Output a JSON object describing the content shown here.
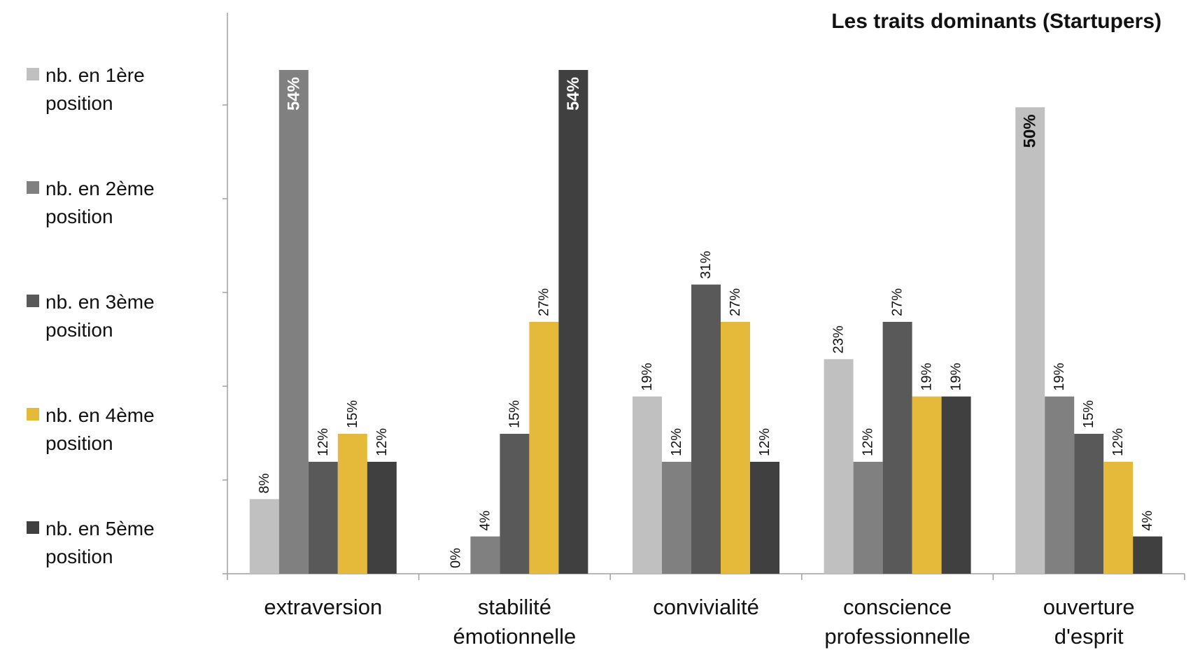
{
  "chart_data": {
    "type": "bar",
    "title": "Les traits dominants (Startupers)",
    "categories": [
      [
        "extraversion"
      ],
      [
        "stabilité",
        "émotionnelle"
      ],
      [
        "convivialité"
      ],
      [
        "conscience",
        "professionnelle"
      ],
      [
        "ouverture",
        "d'esprit"
      ]
    ],
    "series": [
      {
        "name": [
          "nb. en 1ère",
          "position"
        ],
        "color": "#c0c0c0",
        "values": [
          8,
          0,
          19,
          23,
          50
        ]
      },
      {
        "name": [
          "nb. en 2ème",
          "position"
        ],
        "color": "#808080",
        "values": [
          54,
          4,
          12,
          12,
          19
        ]
      },
      {
        "name": [
          "nb. en 3ème",
          "position"
        ],
        "color": "#595959",
        "values": [
          12,
          15,
          31,
          27,
          15
        ]
      },
      {
        "name": [
          "nb. en 4ème",
          "position"
        ],
        "color": "#e5b93a",
        "values": [
          15,
          27,
          27,
          19,
          12
        ]
      },
      {
        "name": [
          "nb. en 5ème",
          "position"
        ],
        "color": "#404040",
        "values": [
          12,
          54,
          12,
          19,
          4
        ]
      }
    ],
    "value_suffix": "%",
    "ylim": [
      0,
      60
    ],
    "grid": false,
    "legend_position": "left"
  }
}
